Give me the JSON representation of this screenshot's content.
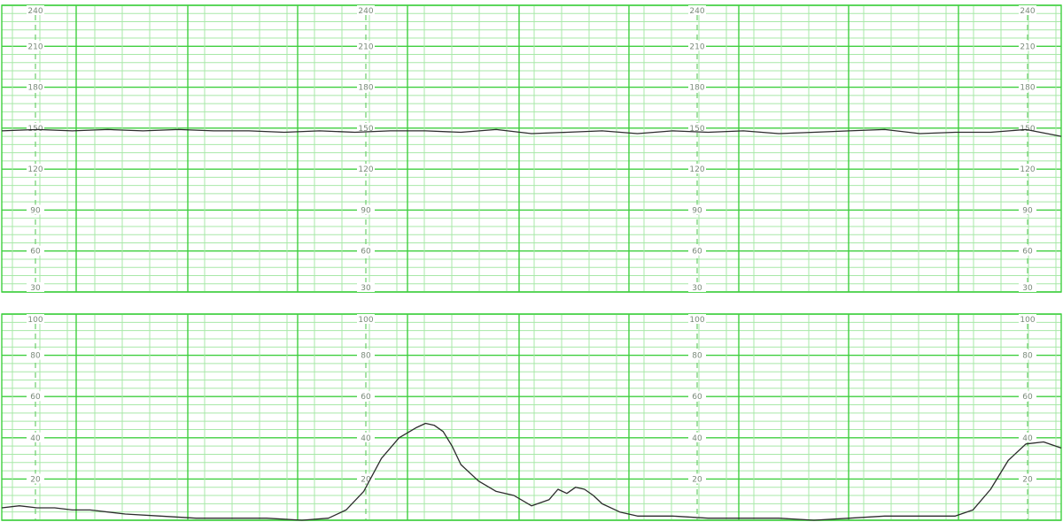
{
  "chart_data": [
    {
      "type": "line",
      "panel": "fetal-heart-rate",
      "title": "",
      "xlabel": "",
      "ylabel": "",
      "ylim": [
        30,
        240
      ],
      "y_ticks": [
        240,
        210,
        180,
        150,
        120,
        90,
        60,
        30
      ],
      "tick_label_columns": 4,
      "grid": true,
      "series": [
        {
          "x": [
            0,
            40,
            80,
            120,
            160,
            200,
            240,
            280,
            320,
            360,
            400,
            440,
            480,
            520,
            560,
            600,
            640,
            680,
            720,
            760,
            800,
            840,
            880,
            920,
            960,
            1000,
            1040,
            1080,
            1120,
            1160,
            1200
          ],
          "y": [
            148,
            149,
            148,
            149,
            148,
            149,
            148,
            148,
            147,
            148,
            147,
            148,
            148,
            147,
            149,
            146,
            147,
            148,
            146,
            148,
            147,
            148,
            146,
            147,
            148,
            149,
            146,
            147,
            147,
            149,
            144
          ]
        }
      ]
    },
    {
      "type": "line",
      "panel": "uterine-contractions",
      "title": "",
      "xlabel": "",
      "ylabel": "",
      "ylim": [
        0,
        100
      ],
      "y_ticks": [
        100,
        80,
        60,
        40,
        20
      ],
      "tick_label_columns": 4,
      "grid": true,
      "series": [
        {
          "x": [
            0,
            20,
            40,
            60,
            80,
            100,
            140,
            180,
            220,
            260,
            300,
            340,
            370,
            390,
            410,
            430,
            450,
            470,
            480,
            490,
            500,
            510,
            520,
            540,
            560,
            580,
            600,
            620,
            630,
            640,
            650,
            660,
            670,
            680,
            700,
            720,
            760,
            800,
            840,
            880,
            920,
            960,
            1000,
            1040,
            1080,
            1100,
            1120,
            1140,
            1160,
            1180,
            1200
          ],
          "y": [
            6,
            7,
            6,
            6,
            5,
            5,
            3,
            2,
            1,
            1,
            1,
            0,
            1,
            5,
            14,
            30,
            40,
            45,
            47,
            46,
            43,
            36,
            27,
            19,
            14,
            12,
            7,
            10,
            15,
            13,
            16,
            15,
            12,
            8,
            4,
            2,
            2,
            1,
            1,
            1,
            0,
            1,
            2,
            2,
            2,
            5,
            15,
            29,
            37,
            38,
            35
          ]
        }
      ]
    }
  ]
}
